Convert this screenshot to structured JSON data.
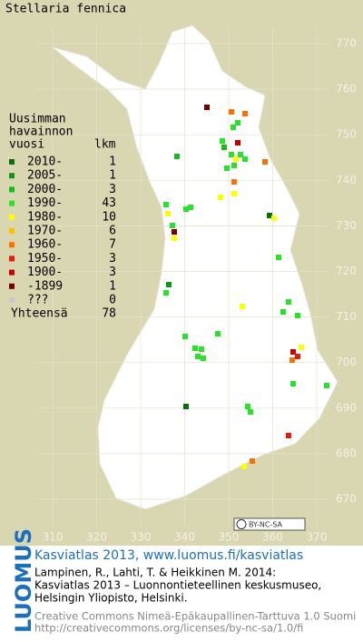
{
  "title": "Stellaria fennica",
  "legend": {
    "header": [
      "Uusimman",
      "havainnon",
      "vuosi"
    ],
    "count_header": "lkm",
    "rows": [
      {
        "label": "2010-",
        "count": 1,
        "color": "#0a6e0a"
      },
      {
        "label": "2005-",
        "count": 1,
        "color": "#12961a"
      },
      {
        "label": "2000-",
        "count": 3,
        "color": "#16be16"
      },
      {
        "label": "1990-",
        "count": 43,
        "color": "#28e428"
      },
      {
        "label": "1980-",
        "count": 10,
        "color": "#ffff00"
      },
      {
        "label": "1970-",
        "count": 6,
        "color": "#ffc000"
      },
      {
        "label": "1960-",
        "count": 7,
        "color": "#ff7000"
      },
      {
        "label": "1950-",
        "count": 3,
        "color": "#e81a0a"
      },
      {
        "label": "1900-",
        "count": 3,
        "color": "#c40000"
      },
      {
        "label": "-1899",
        "count": 1,
        "color": "#7a0000"
      },
      {
        "label": "???",
        "count": 0,
        "color": "#c8c8c8"
      }
    ],
    "total_label": "Yhteensä",
    "total": 78
  },
  "grid": {
    "yticks": [
      770,
      760,
      750,
      740,
      730,
      720,
      710,
      700,
      690,
      680,
      670
    ],
    "xticks": [
      310,
      320,
      330,
      340,
      350,
      360,
      370
    ]
  },
  "license_badge": "BY-NC-SA",
  "footer": {
    "logo": "LUOMUS",
    "heading": "Kasviatlas 2013, www.luomus.fi/kasviatlas",
    "citation": [
      "Lampinen, R., Lahti, T. & Heikkinen M. 2014:",
      "Kasviatlas 2013 – Luonnontieteellinen keskusmuseo,",
      "Helsingin Yliopisto, Helsinki."
    ],
    "license": [
      "Creative Commons Nimeä-Epäkaupallinen-Tarttuva 1.0 Suomi",
      "http://creativecommons.org/licenses/by-nc-sa/1.0/fi"
    ]
  }
}
